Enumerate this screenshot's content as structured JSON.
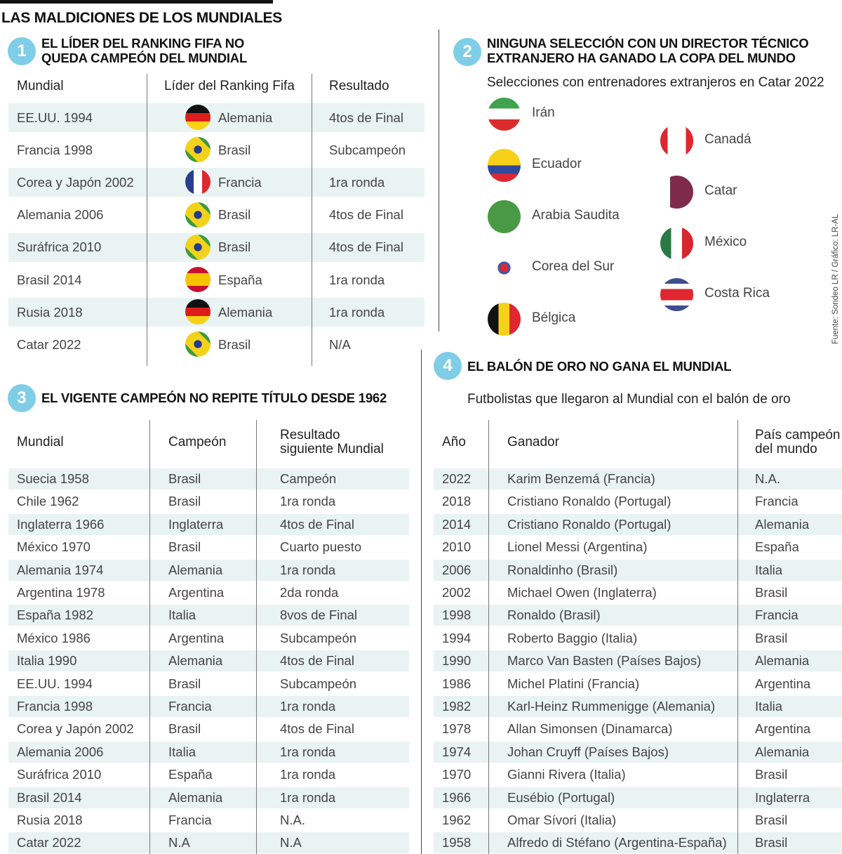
{
  "title": "LAS MALDICIONES DE LOS MUNDIALES",
  "source": "Fuente: Sondeo LR / Gráfico: LR-AL",
  "accent": "#7fcde6",
  "band_color": "#e8f3f2",
  "s1": {
    "num": "1",
    "title1": "EL LÍDER DEL RANKING FIFA NO",
    "title2": "QUEDA CAMPEÓN DEL MUNDIAL",
    "headers": [
      "Mundial",
      "Líder del Ranking Fifa",
      "Resultado"
    ],
    "rows": [
      {
        "mundial": "EE.UU. 1994",
        "lider": "Alemania",
        "flag": "germany",
        "resultado": "4tos de Final"
      },
      {
        "mundial": "Francia 1998",
        "lider": "Brasil",
        "flag": "brazil",
        "resultado": "Subcampeón"
      },
      {
        "mundial": "Corea y Japón 2002",
        "lider": "Francia",
        "flag": "france",
        "resultado": "1ra ronda"
      },
      {
        "mundial": "Alemania 2006",
        "lider": "Brasil",
        "flag": "brazil",
        "resultado": "4tos de Final"
      },
      {
        "mundial": "Suráfrica 2010",
        "lider": "Brasil",
        "flag": "brazil",
        "resultado": "4tos de Final"
      },
      {
        "mundial": "Brasil 2014",
        "lider": "España",
        "flag": "spain",
        "resultado": "1ra ronda"
      },
      {
        "mundial": "Rusia 2018",
        "lider": "Alemania",
        "flag": "germany",
        "resultado": "1ra ronda"
      },
      {
        "mundial": "Catar 2022",
        "lider": "Brasil",
        "flag": "brazil",
        "resultado": "N/A"
      }
    ]
  },
  "s2": {
    "num": "2",
    "title1": "NINGUNA SELECCIÓN CON UN DIRECTOR TÉCNICO",
    "title2": "EXTRANJERO HA GANADO LA COPA DEL MUNDO",
    "subtitle": "Selecciones con entrenadores extranjeros en Catar 2022",
    "left": [
      {
        "name": "Irán",
        "flag": "iran"
      },
      {
        "name": "Ecuador",
        "flag": "ecuador"
      },
      {
        "name": "Arabia Saudita",
        "flag": "saudi"
      },
      {
        "name": "Corea del Sur",
        "flag": "korea"
      },
      {
        "name": "Bélgica",
        "flag": "belgium"
      }
    ],
    "right": [
      {
        "name": "Canadá",
        "flag": "canada"
      },
      {
        "name": "Catar",
        "flag": "qatar"
      },
      {
        "name": "México",
        "flag": "mexico"
      },
      {
        "name": "Costa Rica",
        "flag": "costarica"
      }
    ]
  },
  "s3": {
    "num": "3",
    "title": "EL VIGENTE CAMPEÓN NO REPITE TÍTULO DESDE 1962",
    "headers": [
      "Mundial",
      "Campeón",
      "Resultado",
      "siguiente Mundial"
    ],
    "rows": [
      [
        "Suecia 1958",
        "Brasil",
        "Campeón"
      ],
      [
        "Chile 1962",
        "Brasil",
        "1ra ronda"
      ],
      [
        "Inglaterra 1966",
        "Inglaterra",
        "4tos de Final"
      ],
      [
        "México 1970",
        "Brasil",
        "Cuarto puesto"
      ],
      [
        "Alemania 1974",
        "Alemania",
        "1ra ronda"
      ],
      [
        "Argentina 1978",
        "Argentina",
        "2da ronda"
      ],
      [
        "España 1982",
        "Italia",
        "8vos de Final"
      ],
      [
        "México 1986",
        "Argentina",
        "Subcampeón"
      ],
      [
        "Italia 1990",
        "Alemania",
        "4tos de Final"
      ],
      [
        "EE.UU. 1994",
        "Brasil",
        "Subcampeón"
      ],
      [
        "Francia 1998",
        "Francia",
        "1ra ronda"
      ],
      [
        "Corea y Japón 2002",
        "Brasil",
        "4tos de Final"
      ],
      [
        "Alemania 2006",
        "Italia",
        "1ra ronda"
      ],
      [
        "Suráfrica 2010",
        "España",
        "1ra ronda"
      ],
      [
        "Brasil 2014",
        "Alemania",
        "1ra ronda"
      ],
      [
        "Rusia 2018",
        "Francia",
        "N.A."
      ],
      [
        "Catar 2022",
        "N.A",
        "N.A"
      ]
    ]
  },
  "s4": {
    "num": "4",
    "title": "EL BALÓN DE ORO NO GANA EL MUNDIAL",
    "subtitle": "Futbolistas que llegaron al Mundial con el balón de oro",
    "headers": [
      "Año",
      "Ganador",
      "País campeón",
      "del mundo"
    ],
    "rows": [
      [
        "2022",
        "Karim Benzemá (Francia)",
        "N.A."
      ],
      [
        "2018",
        "Cristiano Ronaldo (Portugal)",
        "Francia"
      ],
      [
        "2014",
        "Cristiano Ronaldo (Portugal)",
        "Alemania"
      ],
      [
        "2010",
        "Lionel Messi (Argentina)",
        "España"
      ],
      [
        "2006",
        "Ronaldinho (Brasil)",
        "Italia"
      ],
      [
        "2002",
        "Michael Owen (Inglaterra)",
        "Brasil"
      ],
      [
        "1998",
        "Ronaldo (Brasil)",
        "Francia"
      ],
      [
        "1994",
        "Roberto Baggio (Italia)",
        "Brasil"
      ],
      [
        "1990",
        "Marco Van Basten (Países Bajos)",
        "Alemania"
      ],
      [
        "1986",
        "Michel Platini (Francia)",
        "Argentina"
      ],
      [
        "1982",
        "Karl-Heinz Rummenigge (Alemania)",
        "Italia"
      ],
      [
        "1978",
        "Allan Simonsen (Dinamarca)",
        "Argentina"
      ],
      [
        "1974",
        "Johan Cruyff (Países Bajos)",
        "Alemania"
      ],
      [
        "1970",
        "Gianni Rivera (Italia)",
        "Brasil"
      ],
      [
        "1966",
        "Eusébio (Portugal)",
        "Inglaterra"
      ],
      [
        "1962",
        "Omar Sívori (Italia)",
        "Brasil"
      ],
      [
        "1958",
        "Alfredo di Stéfano (Argentina-España)",
        "Brasil"
      ]
    ]
  }
}
